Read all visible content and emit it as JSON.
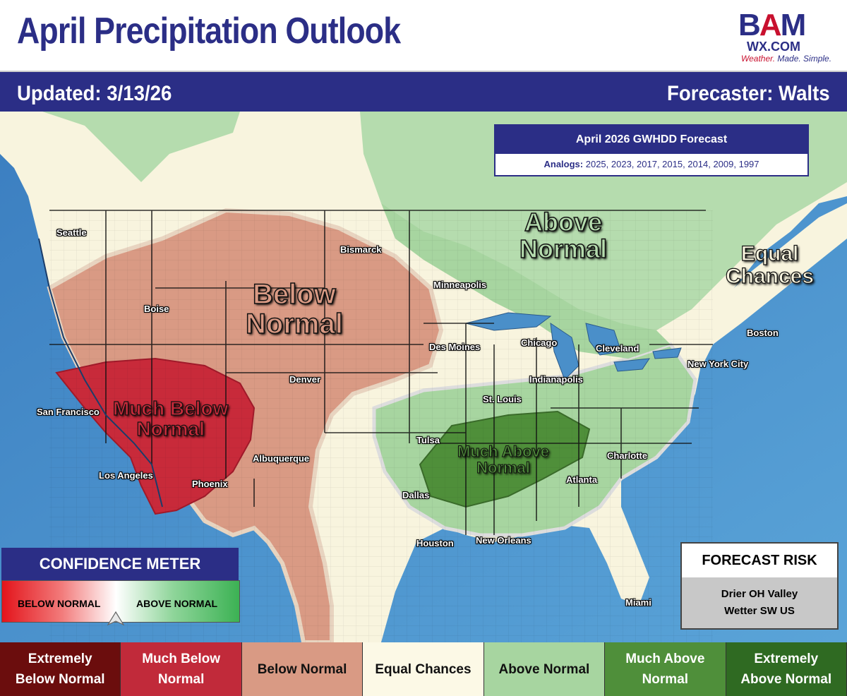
{
  "title": "April Precipitation Outlook",
  "logo": {
    "main_b": "B",
    "main_a": "A",
    "main_m": "M",
    "sub": "WX.COM",
    "tag_1": "Weather.",
    "tag_2": " Made. Simple."
  },
  "updated": "Updated: 3/13/26",
  "forecaster": "Forecaster: Walts",
  "analogs": {
    "title": "April 2026 GWHDD Forecast",
    "label": "Analogs:",
    "years": "2025, 2023, 2017, 2015, 2014, 2009, 1997"
  },
  "zones": {
    "above_normal": [
      "Above",
      "Normal"
    ],
    "equal_chances": [
      "Equal",
      "Chances"
    ],
    "below_normal": [
      "Below",
      "Normal"
    ],
    "much_below_normal": [
      "Much Below",
      "Normal"
    ],
    "much_above_normal": [
      "Much Above",
      "Normal"
    ]
  },
  "cities": [
    {
      "name": "Seattle"
    },
    {
      "name": "Boise"
    },
    {
      "name": "San Francisco"
    },
    {
      "name": "Los Angeles"
    },
    {
      "name": "Phoenix"
    },
    {
      "name": "Denver"
    },
    {
      "name": "Albuquerque"
    },
    {
      "name": "Bismarck"
    },
    {
      "name": "Minneapolis"
    },
    {
      "name": "Des Moines"
    },
    {
      "name": "Chicago"
    },
    {
      "name": "Cleveland"
    },
    {
      "name": "Boston"
    },
    {
      "name": "New York City"
    },
    {
      "name": "Indianapolis"
    },
    {
      "name": "St. Louis"
    },
    {
      "name": "Tulsa"
    },
    {
      "name": "Dallas"
    },
    {
      "name": "Houston"
    },
    {
      "name": "New Orleans"
    },
    {
      "name": "Atlanta"
    },
    {
      "name": "Charlotte"
    },
    {
      "name": "Miami"
    }
  ],
  "confidence": {
    "title": "CONFIDENCE METER",
    "left": "BELOW NORMAL",
    "right": "ABOVE NORMAL",
    "level": 0.48
  },
  "risk": {
    "title": "FORECAST RISK",
    "line1": "Drier OH Valley",
    "line2": "Wetter SW US"
  },
  "legend": [
    {
      "label1": "Extremely",
      "label2": "Below Normal",
      "bg": "#6b0d0d",
      "fg": "#ffffff"
    },
    {
      "label1": "Much Below",
      "label2": "Normal",
      "bg": "#c12a3a",
      "fg": "#ffffff"
    },
    {
      "label1": "Below Normal",
      "label2": "",
      "bg": "#d99a84",
      "fg": "#111111"
    },
    {
      "label1": "Equal Chances",
      "label2": "",
      "bg": "#fcf9e6",
      "fg": "#111111"
    },
    {
      "label1": "Above Normal",
      "label2": "",
      "bg": "#a7d5a0",
      "fg": "#111111"
    },
    {
      "label1": "Much Above",
      "label2": "Normal",
      "bg": "#4f8f3a",
      "fg": "#ffffff"
    },
    {
      "label1": "Extremely",
      "label2": "Above Normal",
      "bg": "#2f6a22",
      "fg": "#ffffff"
    }
  ],
  "colors": {
    "ocean": "#4a8fc9",
    "canada_green": "#b5dcae",
    "equal": "#f8f4de",
    "below": "#d99a84",
    "much_below": "#c82a3a",
    "above": "#a7d5a0",
    "much_above": "#4f8f3a",
    "brand_navy": "#2b2e86"
  }
}
